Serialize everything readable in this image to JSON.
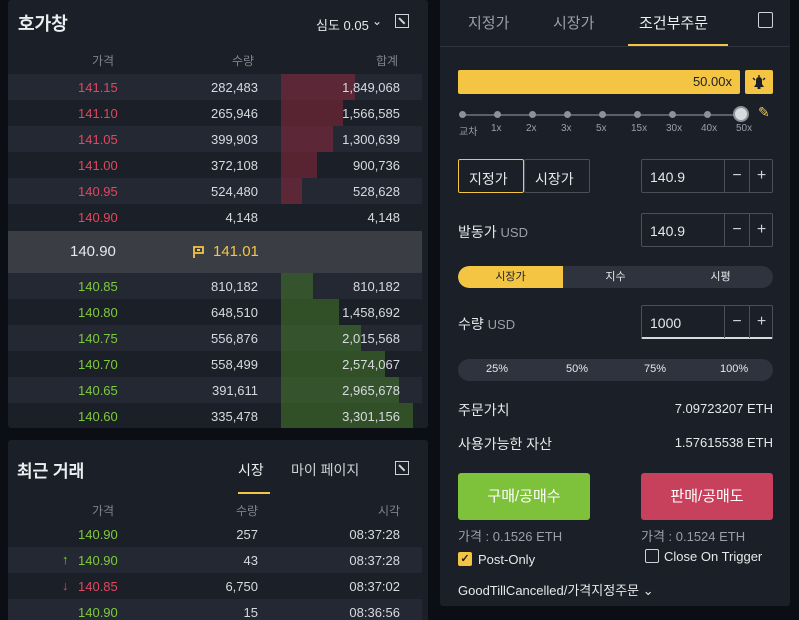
{
  "orderbook": {
    "title": "호가창",
    "depth_label": "심도 0.05",
    "headers": {
      "price": "가격",
      "qty": "수량",
      "total": "합계"
    },
    "asks": [
      {
        "price": "141.15",
        "qty": "282,483",
        "total": "1,849,068",
        "depth": 0.92
      },
      {
        "price": "141.10",
        "qty": "265,946",
        "total": "1,566,585",
        "depth": 0.78
      },
      {
        "price": "141.05",
        "qty": "399,903",
        "total": "1,300,639",
        "depth": 0.65
      },
      {
        "price": "141.00",
        "qty": "372,108",
        "total": "900,736",
        "depth": 0.45
      },
      {
        "price": "140.95",
        "qty": "524,480",
        "total": "528,628",
        "depth": 0.26
      },
      {
        "price": "140.90",
        "qty": "4,148",
        "total": "4,148",
        "depth": 0.0
      }
    ],
    "mid": {
      "last_price": "140.90",
      "mark_price": "141.01"
    },
    "bids": [
      {
        "price": "140.85",
        "qty": "810,182",
        "total": "810,182",
        "depth": 0.4
      },
      {
        "price": "140.80",
        "qty": "648,510",
        "total": "1,458,692",
        "depth": 0.73
      },
      {
        "price": "140.75",
        "qty": "556,876",
        "total": "2,015,568",
        "depth": 1.0
      },
      {
        "price": "140.70",
        "qty": "558,499",
        "total": "2,574,067",
        "depth": 1.3
      },
      {
        "price": "140.65",
        "qty": "391,611",
        "total": "2,965,678",
        "depth": 1.48
      },
      {
        "price": "140.60",
        "qty": "335,478",
        "total": "3,301,156",
        "depth": 1.65
      }
    ]
  },
  "trades": {
    "title": "최근 거래",
    "tab_market": "시장",
    "tab_mypage": "마이 페이지",
    "headers": {
      "price": "가격",
      "qty": "수량",
      "time": "시각"
    },
    "rows": [
      {
        "price": "140.90",
        "qty": "257",
        "time": "08:37:28",
        "side": "buy",
        "arrow": ""
      },
      {
        "price": "140.90",
        "qty": "43",
        "time": "08:37:28",
        "side": "buy",
        "arrow": "↑"
      },
      {
        "price": "140.85",
        "qty": "6,750",
        "time": "08:37:02",
        "side": "sell",
        "arrow": "↓"
      },
      {
        "price": "140.90",
        "qty": "15",
        "time": "08:36:56",
        "side": "buy",
        "arrow": ""
      }
    ]
  },
  "order": {
    "tabs": [
      "지정가",
      "시장가",
      "조건부주문"
    ],
    "leverage": "50.00x",
    "slider_ticks": [
      "교차",
      "1x",
      "2x",
      "3x",
      "5x",
      "15x",
      "30x",
      "40x",
      "50x"
    ],
    "type_limit": "지정가",
    "type_market": "시장가",
    "price_value": "140.9",
    "trigger_label": "발동가",
    "trigger_unit": "USD",
    "trigger_value": "140.9",
    "trigger_types": [
      "시장가",
      "지수",
      "시평"
    ],
    "qty_label": "수량",
    "qty_unit": "USD",
    "qty_value": "1000",
    "percents": [
      "25%",
      "50%",
      "75%",
      "100%"
    ],
    "order_value_label": "주문가치",
    "order_value": "7.09723207 ETH",
    "available_label": "사용가능한 자산",
    "available": "1.57615538 ETH",
    "buy_label": "구매/공매수",
    "sell_label": "판매/공매도",
    "buy_est": "가격 : 0.1526 ETH",
    "sell_est": "가격 : 0.1524 ETH",
    "post_only": "Post-Only",
    "close_on_trigger": "Close On Trigger",
    "tif": "GoodTillCancelled/가격지정주문 ⌄"
  },
  "colors": {
    "ask": "#e0485f",
    "bid": "#7ecb3a",
    "accent": "#f4c542",
    "buy": "#7ec13a",
    "sell": "#c7405c"
  }
}
